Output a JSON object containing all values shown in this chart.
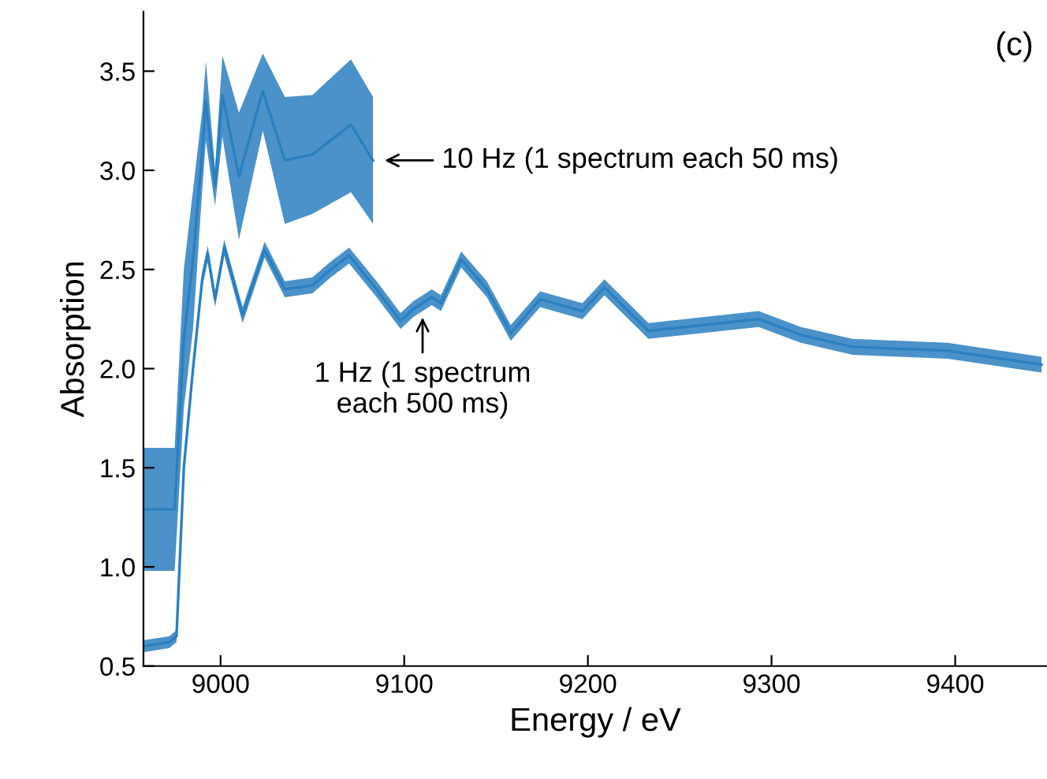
{
  "chart_data": {
    "type": "line",
    "xlabel": "Energy / eV",
    "ylabel": "Absorption",
    "xlim": [
      8958,
      9450
    ],
    "ylim": [
      0.5,
      3.8
    ],
    "xticks": [
      9000,
      9100,
      9200,
      9300,
      9400
    ],
    "yticks": [
      {
        "value": 0.5,
        "label": "0.5"
      },
      {
        "value": 1.0,
        "label": "1.0"
      },
      {
        "value": 1.5,
        "label": "1.5"
      },
      {
        "value": 2.0,
        "label": "2.0"
      },
      {
        "value": 2.5,
        "label": "2.5"
      },
      {
        "value": 3.0,
        "label": "3.0"
      },
      {
        "value": 3.5,
        "label": "3.5"
      }
    ],
    "grid": false,
    "marker": "none",
    "line_style": "solid",
    "series": [
      {
        "color": "#2a7fc0",
        "x": [
          8958,
          8972,
          8976,
          8980,
          8985,
          8990,
          8993,
          8997,
          9002,
          9012,
          9024,
          9035,
          9050,
          9060,
          9070,
          9085,
          9098,
          9105,
          9115,
          9120,
          9131,
          9145,
          9158,
          9174,
          9197,
          9209,
          9233,
          9293,
          9316,
          9344,
          9396,
          9447
        ],
        "values": [
          0.6,
          0.62,
          0.65,
          1.5,
          2.0,
          2.45,
          2.58,
          2.35,
          2.61,
          2.27,
          2.6,
          2.4,
          2.42,
          2.5,
          2.57,
          2.4,
          2.24,
          2.3,
          2.36,
          2.33,
          2.55,
          2.4,
          2.18,
          2.35,
          2.29,
          2.41,
          2.19,
          2.25,
          2.17,
          2.11,
          2.09,
          2.02
        ],
        "lower": [
          0.57,
          0.59,
          0.62,
          1.45,
          1.96,
          2.41,
          2.54,
          2.31,
          2.57,
          2.23,
          2.56,
          2.36,
          2.38,
          2.46,
          2.53,
          2.36,
          2.2,
          2.26,
          2.32,
          2.29,
          2.51,
          2.36,
          2.14,
          2.31,
          2.25,
          2.37,
          2.15,
          2.21,
          2.13,
          2.07,
          2.05,
          1.98
        ],
        "upper": [
          0.63,
          0.65,
          0.68,
          1.55,
          2.04,
          2.49,
          2.62,
          2.39,
          2.65,
          2.31,
          2.64,
          2.44,
          2.46,
          2.54,
          2.61,
          2.44,
          2.28,
          2.34,
          2.4,
          2.37,
          2.59,
          2.44,
          2.22,
          2.39,
          2.33,
          2.45,
          2.23,
          2.29,
          2.21,
          2.15,
          2.13,
          2.06
        ]
      },
      {
        "color": "#2a7fc0",
        "x": [
          8958,
          8975,
          8980,
          8985,
          8990,
          8992,
          8997,
          9001,
          9010,
          9023,
          9035,
          9050,
          9071,
          9083
        ],
        "values": [
          1.29,
          1.29,
          2.15,
          2.55,
          3.1,
          3.35,
          2.92,
          3.38,
          2.97,
          3.4,
          3.05,
          3.08,
          3.23,
          3.05
        ],
        "lower": [
          0.98,
          0.98,
          1.8,
          2.2,
          2.9,
          3.15,
          2.82,
          3.17,
          2.65,
          3.2,
          2.73,
          2.78,
          2.89,
          2.73
        ],
        "upper": [
          1.6,
          1.6,
          2.5,
          2.9,
          3.3,
          3.55,
          3.01,
          3.58,
          3.29,
          3.59,
          3.37,
          3.38,
          3.56,
          3.37
        ]
      }
    ],
    "annotations": [
      "(c)",
      {
        "text": "10 Hz (1 spectrum each 50 ms)",
        "x": 9087,
        "y": 3.05
      },
      {
        "text": "1 Hz (1 spectrum\neach 500 ms)",
        "x": 9110,
        "y": 2.28
      }
    ]
  }
}
